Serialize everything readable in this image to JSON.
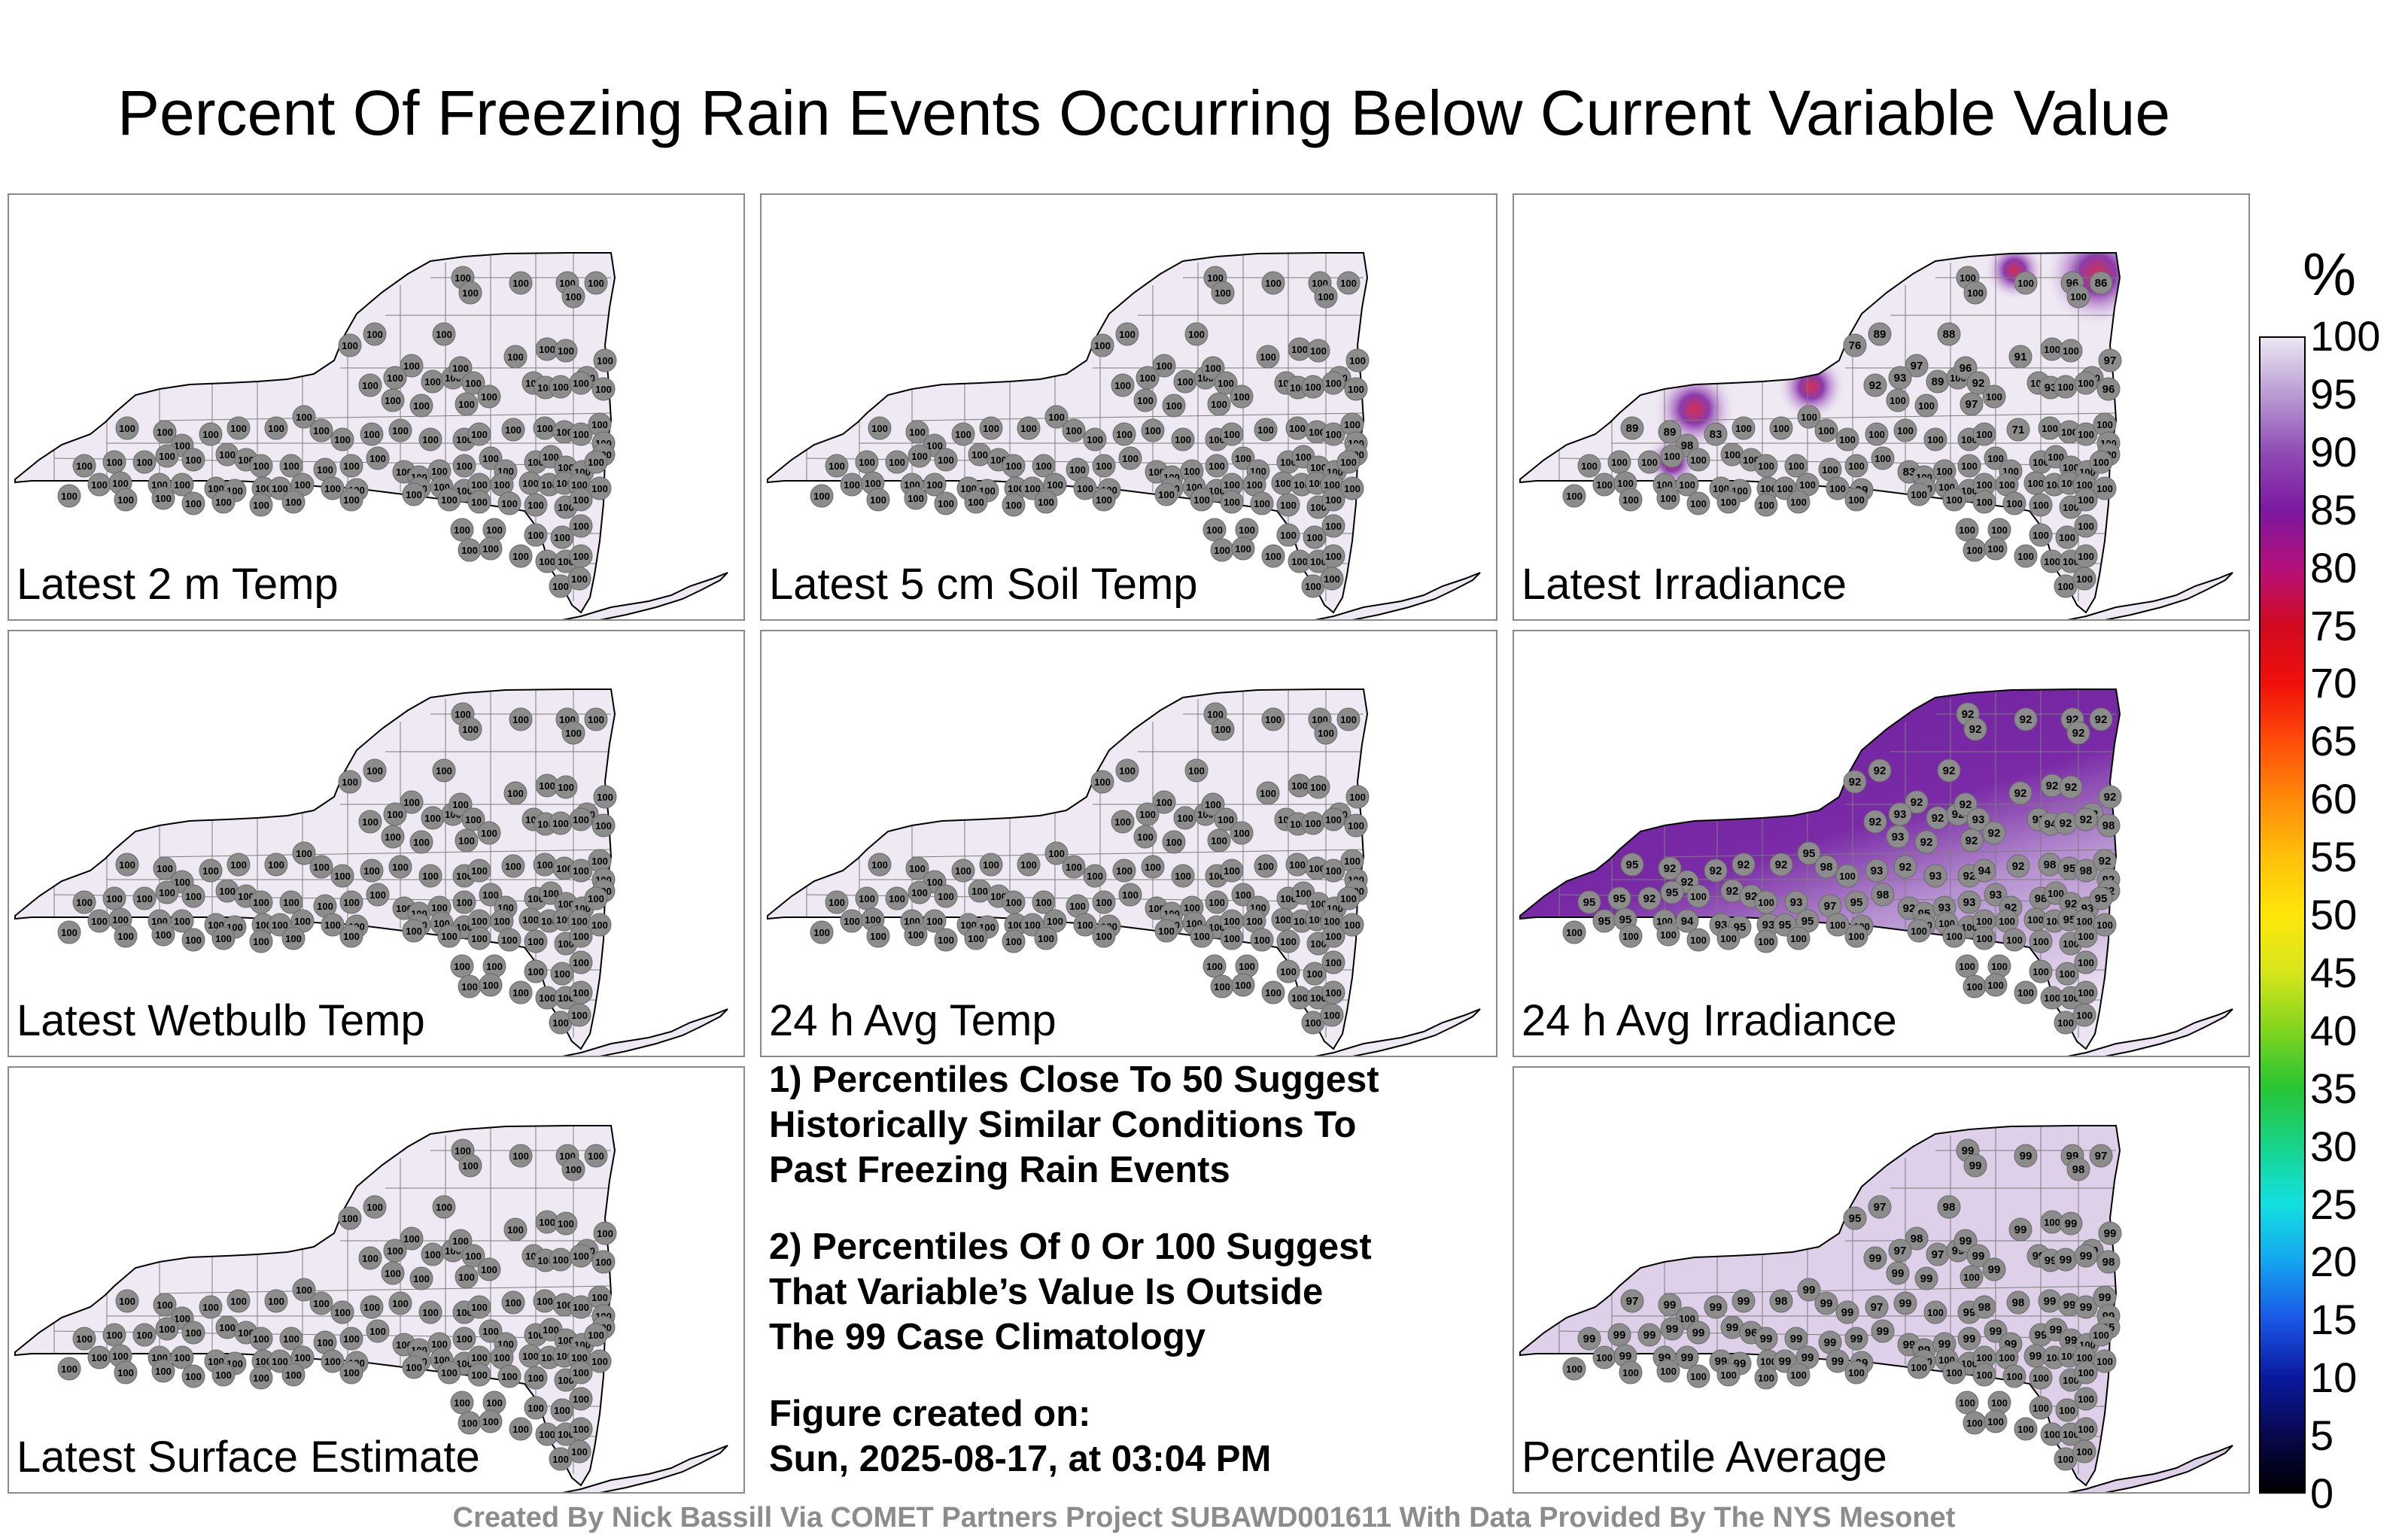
{
  "title": "Percent Of Freezing Rain Events Occurring Below Current Variable Value",
  "colors": {
    "state_fill_low": "#efe9f3",
    "station_marker": "#8c8c8c",
    "county_lines": "#7d7d7d"
  },
  "panels": [
    {
      "label": "Latest 2 m Temp",
      "shading": "uniform",
      "values": [
        100,
        100,
        100,
        100,
        100,
        100,
        100,
        100,
        100,
        100,
        100,
        100,
        100,
        100,
        100,
        100,
        100,
        100,
        100,
        100,
        100,
        100,
        100,
        100,
        100,
        100,
        100,
        100,
        100,
        100,
        100,
        100,
        100,
        100,
        100,
        100,
        100,
        100,
        100,
        100,
        100,
        100,
        100,
        100,
        100,
        100,
        100,
        100,
        100,
        100,
        100,
        100,
        100,
        100,
        100,
        100,
        100,
        100,
        100,
        100,
        100,
        100,
        100,
        100,
        100,
        100,
        100,
        100,
        100,
        100,
        100,
        100,
        100,
        100,
        100,
        100,
        100,
        100,
        100,
        100,
        100,
        100,
        100,
        100,
        100,
        100,
        100,
        100,
        100,
        100,
        100,
        100,
        100,
        100,
        100,
        100,
        100,
        100,
        100,
        100,
        100,
        100,
        100,
        100,
        100,
        100,
        100,
        100,
        100,
        100,
        100,
        100,
        100,
        100,
        100,
        100,
        100,
        100,
        100,
        100,
        100,
        100,
        100
      ]
    },
    {
      "label": "Latest 5 cm Soil Temp",
      "shading": "uniform",
      "values": [
        100,
        100,
        100,
        100,
        100,
        100,
        100,
        100,
        100,
        100,
        100,
        100,
        100,
        100,
        100,
        100,
        100,
        100,
        100,
        100,
        100,
        100,
        100,
        100,
        100,
        100,
        100,
        100,
        100,
        100,
        100,
        100,
        100,
        100,
        100,
        100,
        100,
        100,
        100,
        100,
        100,
        100,
        100,
        100,
        100,
        100,
        100,
        100,
        100,
        100,
        100,
        100,
        100,
        100,
        100,
        100,
        100,
        100,
        100,
        100,
        100,
        100,
        100,
        100,
        100,
        100,
        100,
        100,
        100,
        100,
        100,
        100,
        100,
        100,
        100,
        100,
        100,
        100,
        100,
        100,
        100,
        100,
        100,
        100,
        100,
        100,
        100,
        100,
        100,
        100,
        100,
        100,
        100,
        100,
        100,
        100,
        100,
        100,
        100,
        100,
        100,
        100,
        100,
        100,
        100,
        100,
        100,
        100,
        100,
        100,
        100,
        100,
        100,
        100,
        100,
        100,
        100,
        100,
        100,
        100,
        100,
        100,
        100
      ]
    },
    {
      "label": "Latest Irradiance",
      "shading": "mostly-light",
      "values": [
        100,
        100,
        100,
        96,
        100,
        86,
        76,
        89,
        88,
        97,
        93,
        89,
        100,
        96,
        92,
        91,
        100,
        100,
        100,
        97,
        92,
        100,
        100,
        97,
        100,
        100,
        93,
        100,
        100,
        96,
        89,
        89,
        98,
        83,
        100,
        100,
        100,
        100,
        100,
        100,
        100,
        100,
        100,
        100,
        71,
        100,
        100,
        100,
        100,
        100,
        100,
        100,
        100,
        100,
        100,
        100,
        100,
        100,
        100,
        100,
        100,
        100,
        100,
        83,
        100,
        100,
        100,
        100,
        100,
        100,
        100,
        100,
        100,
        100,
        100,
        100,
        100,
        100,
        100,
        100,
        100,
        100,
        100,
        100,
        99,
        100,
        100,
        100,
        100,
        100,
        100,
        100,
        100,
        100,
        100,
        100,
        100,
        100,
        100,
        100,
        100,
        100,
        100,
        100,
        100,
        100,
        100,
        100,
        100,
        100,
        100,
        100,
        100,
        100,
        100,
        100,
        100,
        100,
        100,
        100,
        100,
        100,
        100
      ]
    },
    {
      "label": "Latest Wetbulb Temp",
      "shading": "uniform",
      "values": [
        100,
        100,
        100,
        100,
        100,
        100,
        100,
        100,
        100,
        100,
        100,
        100,
        100,
        100,
        100,
        100,
        100,
        100,
        100,
        100,
        100,
        100,
        100,
        100,
        100,
        100,
        100,
        100,
        100,
        100,
        100,
        100,
        100,
        100,
        100,
        100,
        100,
        100,
        100,
        100,
        100,
        100,
        100,
        100,
        100,
        100,
        100,
        100,
        100,
        100,
        100,
        100,
        100,
        100,
        100,
        100,
        100,
        100,
        100,
        100,
        100,
        100,
        100,
        100,
        100,
        100,
        100,
        100,
        100,
        100,
        100,
        100,
        100,
        100,
        100,
        100,
        100,
        100,
        100,
        100,
        100,
        100,
        100,
        100,
        100,
        100,
        100,
        100,
        100,
        100,
        100,
        100,
        100,
        100,
        100,
        100,
        100,
        100,
        100,
        100,
        100,
        100,
        100,
        100,
        100,
        100,
        100,
        100,
        100,
        100,
        100,
        100,
        100,
        100,
        100,
        100,
        100,
        100,
        100,
        100,
        100,
        100,
        100
      ]
    },
    {
      "label": "24 h Avg Temp",
      "shading": "uniform",
      "values": [
        100,
        100,
        100,
        100,
        100,
        100,
        100,
        100,
        100,
        100,
        100,
        100,
        100,
        100,
        100,
        100,
        100,
        100,
        100,
        100,
        100,
        100,
        100,
        100,
        100,
        100,
        100,
        100,
        100,
        100,
        100,
        100,
        100,
        100,
        100,
        100,
        100,
        100,
        100,
        100,
        100,
        100,
        100,
        100,
        100,
        100,
        100,
        100,
        100,
        100,
        100,
        100,
        100,
        100,
        100,
        100,
        100,
        100,
        100,
        100,
        100,
        100,
        100,
        100,
        100,
        100,
        100,
        100,
        100,
        100,
        100,
        100,
        100,
        100,
        100,
        100,
        100,
        100,
        100,
        100,
        100,
        100,
        100,
        100,
        100,
        100,
        100,
        100,
        100,
        100,
        100,
        100,
        100,
        100,
        100,
        100,
        100,
        100,
        100,
        100,
        100,
        100,
        100,
        100,
        100,
        100,
        100,
        100,
        100,
        100,
        100,
        100,
        100,
        100,
        100,
        100,
        100,
        100,
        100,
        100,
        100,
        100,
        100
      ]
    },
    {
      "label": "24 h Avg Irradiance",
      "shading": "dark-north",
      "values": [
        92,
        92,
        92,
        92,
        92,
        92,
        92,
        92,
        92,
        92,
        93,
        92,
        92,
        92,
        93,
        92,
        92,
        92,
        92,
        92,
        92,
        93,
        92,
        92,
        92,
        93,
        94,
        92,
        92,
        98,
        95,
        92,
        92,
        92,
        92,
        92,
        95,
        98,
        100,
        93,
        92,
        93,
        92,
        94,
        92,
        98,
        95,
        98,
        92,
        92,
        92,
        95,
        95,
        92,
        95,
        100,
        92,
        92,
        100,
        93,
        97,
        95,
        98,
        92,
        95,
        93,
        93,
        93,
        92,
        98,
        100,
        92,
        93,
        95,
        95,
        95,
        100,
        94,
        93,
        95,
        93,
        95,
        95,
        100,
        100,
        100,
        100,
        100,
        100,
        100,
        100,
        100,
        95,
        100,
        100,
        100,
        100,
        100,
        100,
        100,
        100,
        100,
        100,
        100,
        100,
        100,
        100,
        100,
        100,
        100,
        100,
        100,
        100,
        100,
        100,
        100,
        100,
        100,
        100,
        100,
        100,
        100,
        100
      ]
    },
    {
      "label": "Latest Surface Estimate",
      "shading": "uniform",
      "values": [
        100,
        100,
        100,
        100,
        100,
        100,
        100,
        100,
        100,
        100,
        100,
        100,
        100,
        100,
        100,
        100,
        100,
        100,
        100,
        100,
        100,
        100,
        100,
        100,
        100,
        100,
        100,
        100,
        100,
        100,
        100,
        100,
        100,
        100,
        100,
        100,
        100,
        100,
        100,
        100,
        100,
        100,
        100,
        100,
        100,
        100,
        100,
        100,
        100,
        100,
        100,
        100,
        100,
        100,
        100,
        100,
        100,
        100,
        100,
        100,
        100,
        100,
        100,
        100,
        100,
        100,
        100,
        100,
        100,
        100,
        100,
        100,
        100,
        100,
        100,
        100,
        100,
        100,
        100,
        100,
        100,
        100,
        100,
        100,
        100,
        100,
        100,
        100,
        100,
        100,
        100,
        100,
        100,
        100,
        100,
        100,
        100,
        100,
        100,
        100,
        100,
        100,
        100,
        100,
        100,
        100,
        100,
        100,
        100,
        100,
        100,
        100,
        100,
        100,
        100,
        100,
        100,
        100,
        100,
        100,
        100,
        100,
        100
      ]
    },
    {
      "label": "Percentile Average",
      "shading": "light",
      "values": [
        99,
        99,
        99,
        99,
        98,
        97,
        95,
        97,
        98,
        98,
        97,
        97,
        99,
        99,
        99,
        99,
        100,
        99,
        99,
        99,
        99,
        99,
        99,
        100,
        99,
        99,
        99,
        99,
        99,
        98,
        97,
        99,
        100,
        99,
        99,
        98,
        99,
        99,
        99,
        97,
        99,
        100,
        99,
        98,
        98,
        99,
        99,
        99,
        99,
        99,
        95,
        99,
        99,
        99,
        99,
        99,
        99,
        96,
        99,
        99,
        99,
        99,
        99,
        99,
        99,
        99,
        99,
        99,
        99,
        99,
        99,
        99,
        100,
        100,
        100,
        99,
        99,
        99,
        99,
        99,
        100,
        99,
        99,
        99,
        99,
        100,
        100,
        100,
        100,
        100,
        99,
        100,
        100,
        100,
        100,
        100,
        100,
        100,
        100,
        100,
        100,
        100,
        100,
        100,
        100,
        100,
        100,
        100,
        100,
        100,
        100,
        100,
        100,
        100,
        100,
        100,
        100,
        100,
        100,
        100,
        100,
        100,
        100
      ]
    }
  ],
  "notes": {
    "n1_l1": "1) Percentiles Close To 50 Suggest",
    "n1_l2": "Historically Similar Conditions To",
    "n1_l3": "Past Freezing Rain Events",
    "n2_l1": "2) Percentiles Of 0 Or 100 Suggest",
    "n2_l2": "That Variable’s Value Is Outside",
    "n2_l3": "The 99 Case Climatology",
    "created_label": "Figure created on:",
    "created_value": "Sun, 2025-08-17, at 03:04 PM"
  },
  "colorbar": {
    "unit": "%",
    "ticks": [
      "0",
      "5",
      "10",
      "15",
      "20",
      "25",
      "30",
      "35",
      "40",
      "45",
      "50",
      "55",
      "60",
      "65",
      "70",
      "75",
      "80",
      "85",
      "90",
      "95",
      "100"
    ],
    "stops": [
      "#000000",
      "#08084f",
      "#0a1aa0",
      "#1b57e6",
      "#14a5f0",
      "#14e0e0",
      "#18d48a",
      "#27c434",
      "#80d41e",
      "#d6e61c",
      "#ffe60a",
      "#ffc00a",
      "#ff8a0a",
      "#ff4d0a",
      "#f0100a",
      "#d10a20",
      "#b5107a",
      "#7c18a0",
      "#8f4bb4",
      "#b89ad2",
      "#ece7f2"
    ]
  },
  "credit": "Created By Nick Bassill Via COMET Partners Project SUBAWD001611 With Data Provided By The NYS Mesonet"
}
